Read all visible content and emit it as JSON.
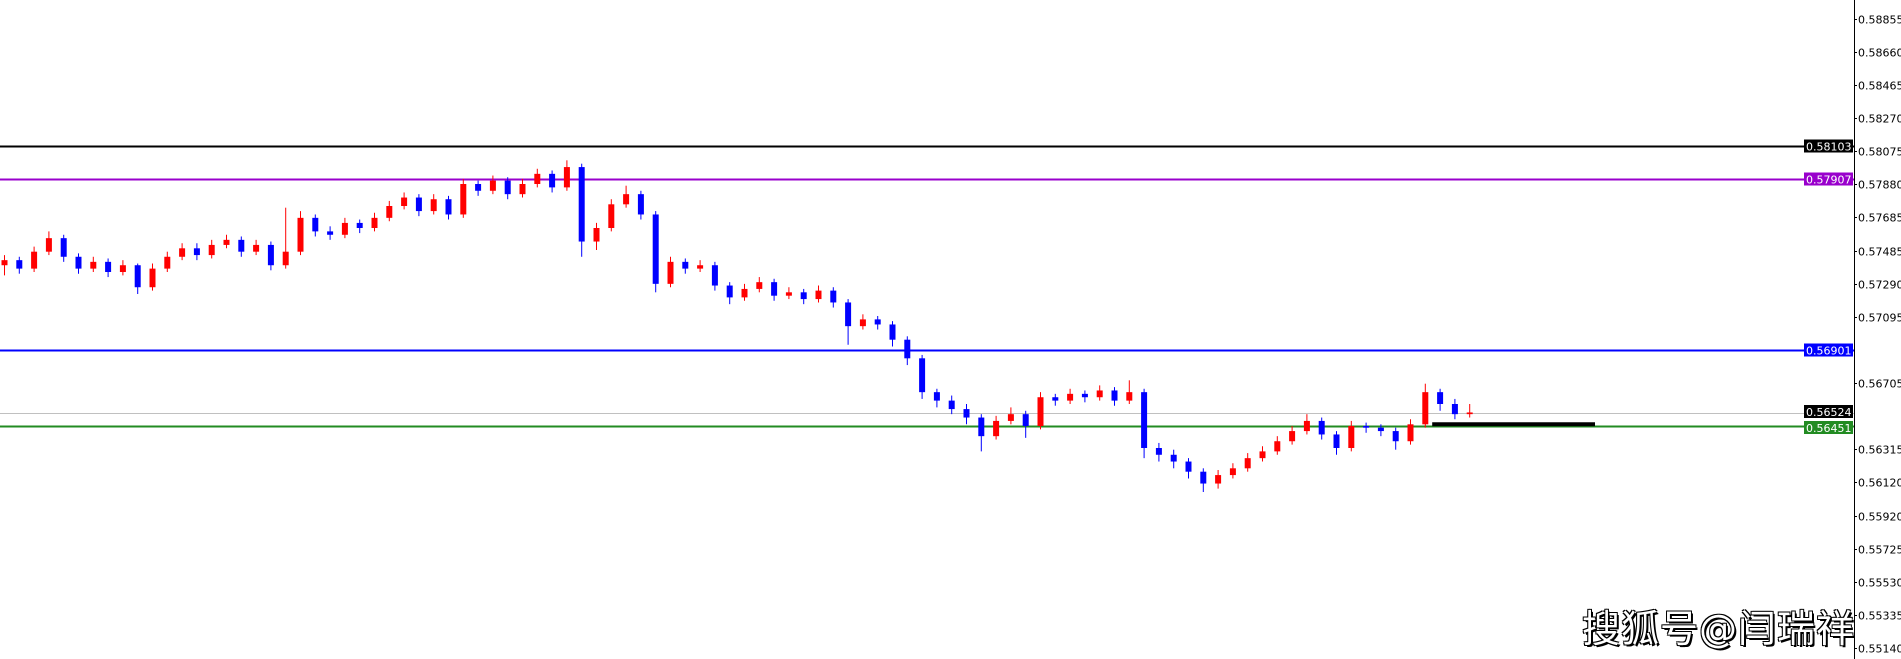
{
  "chart_data": {
    "type": "candlestick",
    "ylim": [
      0.5508,
      0.5895
    ],
    "colors": {
      "bull": "#ff0000",
      "bear": "#0000ff",
      "axis": "#000000"
    },
    "y_ticks": [
      "0.58855",
      "0.58660",
      "0.58465",
      "0.58270",
      "0.58075",
      "0.57880",
      "0.57685",
      "0.57485",
      "0.57290",
      "0.57095",
      "0.56705",
      "0.56315",
      "0.56120",
      "0.55920",
      "0.55725",
      "0.55530",
      "0.55335",
      "0.55140"
    ],
    "horizontal_lines": [
      {
        "price": "0.58103",
        "color": "#000000",
        "label_bg": "#000000"
      },
      {
        "price": "0.57907",
        "color": "#9900cc",
        "label_bg": "#9900cc"
      },
      {
        "price": "0.56901",
        "color": "#0000ff",
        "label_bg": "#0000ff"
      },
      {
        "price": "0.56524",
        "color": "#c0c0c0",
        "label_bg": "#000000"
      },
      {
        "price": "0.56451",
        "color": "#228b22",
        "label_bg": "#228b22"
      }
    ],
    "segment": {
      "price": 0.5646,
      "from_candle": 96.5,
      "to_candle": 107.5,
      "color": "#000000"
    },
    "ohlc": [
      [
        0.574,
        0.5746,
        0.5734,
        0.5743
      ],
      [
        0.5743,
        0.5745,
        0.5735,
        0.5738
      ],
      [
        0.5738,
        0.5751,
        0.5736,
        0.5748
      ],
      [
        0.5748,
        0.576,
        0.5746,
        0.5756
      ],
      [
        0.5756,
        0.5758,
        0.5742,
        0.5745
      ],
      [
        0.5745,
        0.5747,
        0.5735,
        0.5738
      ],
      [
        0.5738,
        0.5745,
        0.5736,
        0.5742
      ],
      [
        0.5742,
        0.5744,
        0.5733,
        0.5736
      ],
      [
        0.5736,
        0.5743,
        0.5734,
        0.574
      ],
      [
        0.574,
        0.5741,
        0.5723,
        0.5727
      ],
      [
        0.5727,
        0.5741,
        0.5725,
        0.5738
      ],
      [
        0.5738,
        0.5748,
        0.5736,
        0.5745
      ],
      [
        0.5745,
        0.5753,
        0.5743,
        0.575
      ],
      [
        0.575,
        0.5753,
        0.5743,
        0.5746
      ],
      [
        0.5746,
        0.5755,
        0.5744,
        0.5752
      ],
      [
        0.5752,
        0.5758,
        0.575,
        0.5755
      ],
      [
        0.5755,
        0.5757,
        0.5745,
        0.5748
      ],
      [
        0.5748,
        0.5755,
        0.5746,
        0.5752
      ],
      [
        0.5752,
        0.5754,
        0.5737,
        0.574
      ],
      [
        0.574,
        0.5774,
        0.5738,
        0.5748
      ],
      [
        0.5748,
        0.5772,
        0.5746,
        0.5768
      ],
      [
        0.5768,
        0.577,
        0.5757,
        0.576
      ],
      [
        0.576,
        0.5763,
        0.5755,
        0.5758
      ],
      [
        0.5758,
        0.5768,
        0.5756,
        0.5765
      ],
      [
        0.5765,
        0.5767,
        0.5759,
        0.5762
      ],
      [
        0.5762,
        0.5771,
        0.576,
        0.5768
      ],
      [
        0.5768,
        0.5778,
        0.5766,
        0.5775
      ],
      [
        0.5775,
        0.5783,
        0.5773,
        0.578
      ],
      [
        0.578,
        0.5782,
        0.5769,
        0.5772
      ],
      [
        0.5772,
        0.5782,
        0.577,
        0.5779
      ],
      [
        0.5779,
        0.5781,
        0.5767,
        0.577
      ],
      [
        0.577,
        0.5791,
        0.5768,
        0.5788
      ],
      [
        0.5788,
        0.579,
        0.5781,
        0.5784
      ],
      [
        0.5784,
        0.5793,
        0.5782,
        0.579
      ],
      [
        0.579,
        0.5792,
        0.5779,
        0.5782
      ],
      [
        0.5782,
        0.5791,
        0.578,
        0.5788
      ],
      [
        0.5788,
        0.5797,
        0.5786,
        0.5794
      ],
      [
        0.5794,
        0.5796,
        0.5783,
        0.5786
      ],
      [
        0.5786,
        0.5802,
        0.5784,
        0.5798
      ],
      [
        0.5798,
        0.58,
        0.5745,
        0.5754
      ],
      [
        0.5754,
        0.5765,
        0.5749,
        0.5762
      ],
      [
        0.5762,
        0.5779,
        0.576,
        0.5776
      ],
      [
        0.5776,
        0.5787,
        0.5774,
        0.5782
      ],
      [
        0.5782,
        0.5784,
        0.5767,
        0.577
      ],
      [
        0.577,
        0.5772,
        0.5724,
        0.5729
      ],
      [
        0.5729,
        0.5745,
        0.5727,
        0.5742
      ],
      [
        0.5742,
        0.5744,
        0.5735,
        0.5738
      ],
      [
        0.5738,
        0.5743,
        0.5736,
        0.574
      ],
      [
        0.574,
        0.5742,
        0.5725,
        0.5728
      ],
      [
        0.5728,
        0.573,
        0.5717,
        0.5721
      ],
      [
        0.5721,
        0.5729,
        0.5719,
        0.5726
      ],
      [
        0.5726,
        0.5733,
        0.5724,
        0.573
      ],
      [
        0.573,
        0.5732,
        0.5719,
        0.5722
      ],
      [
        0.5722,
        0.5727,
        0.572,
        0.5724
      ],
      [
        0.5724,
        0.5726,
        0.5717,
        0.572
      ],
      [
        0.572,
        0.5728,
        0.5718,
        0.5725
      ],
      [
        0.5725,
        0.5727,
        0.5715,
        0.5718
      ],
      [
        0.5718,
        0.572,
        0.5693,
        0.5704
      ],
      [
        0.5704,
        0.5711,
        0.5702,
        0.5708
      ],
      [
        0.5708,
        0.571,
        0.5702,
        0.5705
      ],
      [
        0.5705,
        0.5707,
        0.5692,
        0.5696
      ],
      [
        0.5696,
        0.5698,
        0.5681,
        0.5685
      ],
      [
        0.5685,
        0.5687,
        0.5661,
        0.5665
      ],
      [
        0.5665,
        0.5667,
        0.5656,
        0.566
      ],
      [
        0.566,
        0.5663,
        0.5652,
        0.5655
      ],
      [
        0.5655,
        0.5658,
        0.5646,
        0.565
      ],
      [
        0.565,
        0.5652,
        0.563,
        0.5639
      ],
      [
        0.5639,
        0.5651,
        0.5637,
        0.5648
      ],
      [
        0.5648,
        0.5656,
        0.5646,
        0.5652
      ],
      [
        0.5652,
        0.5654,
        0.5638,
        0.5645
      ],
      [
        0.5645,
        0.5665,
        0.5643,
        0.5662
      ],
      [
        0.5662,
        0.5664,
        0.5657,
        0.566
      ],
      [
        0.566,
        0.5667,
        0.5658,
        0.5664
      ],
      [
        0.5664,
        0.5666,
        0.5659,
        0.5662
      ],
      [
        0.5662,
        0.5669,
        0.566,
        0.5666
      ],
      [
        0.5666,
        0.5668,
        0.5657,
        0.566
      ],
      [
        0.566,
        0.5672,
        0.5658,
        0.5665
      ],
      [
        0.5665,
        0.5667,
        0.5626,
        0.5632
      ],
      [
        0.5632,
        0.5635,
        0.5624,
        0.5628
      ],
      [
        0.5628,
        0.5631,
        0.562,
        0.5624
      ],
      [
        0.5624,
        0.5626,
        0.5614,
        0.5618
      ],
      [
        0.5618,
        0.562,
        0.5606,
        0.5611
      ],
      [
        0.5611,
        0.5619,
        0.5608,
        0.5616
      ],
      [
        0.5616,
        0.5623,
        0.5614,
        0.562
      ],
      [
        0.562,
        0.5629,
        0.5618,
        0.5626
      ],
      [
        0.5626,
        0.5633,
        0.5624,
        0.563
      ],
      [
        0.563,
        0.5639,
        0.5628,
        0.5636
      ],
      [
        0.5636,
        0.5645,
        0.5634,
        0.5642
      ],
      [
        0.5642,
        0.5652,
        0.564,
        0.5648
      ],
      [
        0.5648,
        0.565,
        0.5637,
        0.564
      ],
      [
        0.564,
        0.5642,
        0.5628,
        0.5632
      ],
      [
        0.5632,
        0.5648,
        0.563,
        0.5645
      ],
      [
        0.5645,
        0.5647,
        0.5641,
        0.5644
      ],
      [
        0.5644,
        0.5646,
        0.5639,
        0.5642
      ],
      [
        0.5642,
        0.5644,
        0.5631,
        0.5636
      ],
      [
        0.5636,
        0.5649,
        0.5634,
        0.5646
      ],
      [
        0.5646,
        0.567,
        0.5644,
        0.5665
      ],
      [
        0.5665,
        0.5667,
        0.5654,
        0.5658
      ],
      [
        0.5658,
        0.5661,
        0.5649,
        0.5652
      ],
      [
        0.5652,
        0.5658,
        0.565,
        0.5653
      ]
    ]
  },
  "watermark": "搜狐号@闫瑞祥"
}
